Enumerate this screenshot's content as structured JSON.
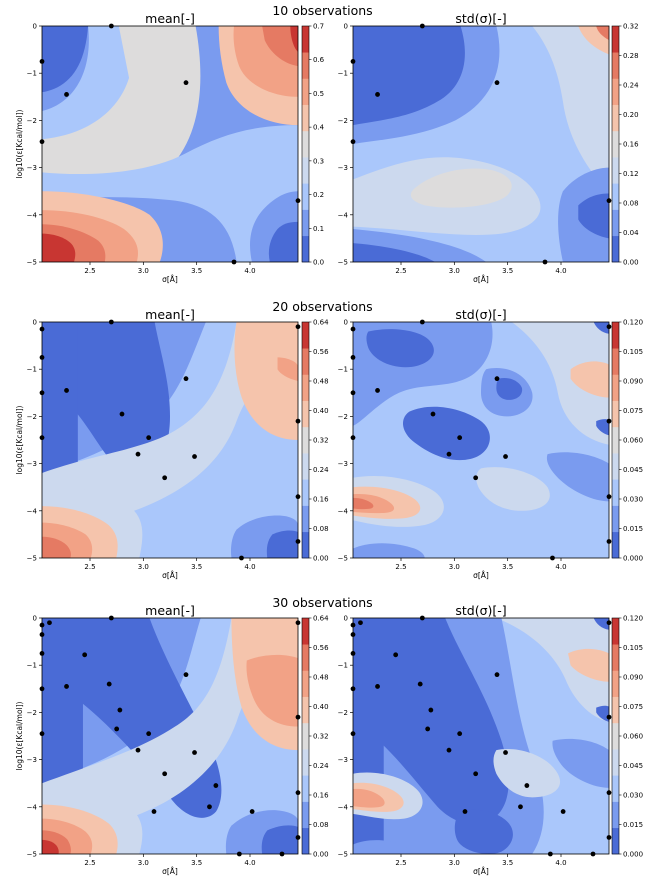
{
  "colors": {
    "blue_dark": "#4a6bd6",
    "blue_mid": "#7a9bef",
    "blue_light": "#aac7fb",
    "pale": "#ccd9ee",
    "grey": "#dddcdc",
    "peach": "#f5c4ac",
    "salmon": "#f2a286",
    "red_mid": "#e57a63",
    "red_dark": "#c83632",
    "point": "#000000"
  },
  "chart_data": [
    {
      "type": "contour",
      "suptitle": "10 observations",
      "title": "mean[-]",
      "xlabel": "σ[Å]",
      "ylabel": "log10(ε[Kcal/mol])",
      "xlim": [
        2.05,
        4.45
      ],
      "ylim": [
        -5,
        0
      ],
      "x_ticks": [
        "2.5",
        "3.0",
        "3.5",
        "4.0"
      ],
      "y_ticks": [
        "0",
        "−1",
        "−2",
        "−3",
        "−4",
        "−5"
      ],
      "colorbar_ticks": [
        "0.0",
        "0.1",
        "0.2",
        "0.3",
        "0.4",
        "0.5",
        "0.6",
        "0.7"
      ],
      "points": [
        [
          2.05,
          -0.75
        ],
        [
          2.28,
          -1.45
        ],
        [
          2.7,
          0
        ],
        [
          3.4,
          -1.2
        ],
        [
          2.05,
          -2.45
        ],
        [
          3.85,
          -5
        ],
        [
          4.45,
          -3.7
        ]
      ]
    },
    {
      "type": "contour",
      "title": "std(σ)[-]",
      "xlabel": "σ[Å]",
      "ylabel": "",
      "xlim": [
        2.05,
        4.45
      ],
      "ylim": [
        -5,
        0
      ],
      "x_ticks": [
        "2.5",
        "3.0",
        "3.5",
        "4.0"
      ],
      "y_ticks": [
        "0",
        "−1",
        "−2",
        "−3",
        "−4",
        "−5"
      ],
      "colorbar_ticks": [
        "0.00",
        "0.04",
        "0.08",
        "0.12",
        "0.16",
        "0.20",
        "0.24",
        "0.28",
        "0.32"
      ],
      "points": [
        [
          2.05,
          -0.75
        ],
        [
          2.28,
          -1.45
        ],
        [
          2.7,
          0
        ],
        [
          3.4,
          -1.2
        ],
        [
          2.05,
          -2.45
        ],
        [
          3.85,
          -5
        ],
        [
          4.45,
          -3.7
        ]
      ]
    },
    {
      "type": "contour",
      "suptitle": "20 observations",
      "title": "mean[-]",
      "xlabel": "σ[Å]",
      "ylabel": "log10(ε[Kcal/mol])",
      "xlim": [
        2.05,
        4.45
      ],
      "ylim": [
        -5,
        0
      ],
      "x_ticks": [
        "2.5",
        "3.0",
        "3.5",
        "4.0"
      ],
      "y_ticks": [
        "0",
        "−1",
        "−2",
        "−3",
        "−4",
        "−5"
      ],
      "colorbar_ticks": [
        "0.00",
        "0.08",
        "0.16",
        "0.24",
        "0.32",
        "0.40",
        "0.48",
        "0.56",
        "0.64"
      ],
      "points": [
        [
          2.05,
          -0.15
        ],
        [
          2.05,
          -0.75
        ],
        [
          2.05,
          -1.5
        ],
        [
          2.28,
          -1.45
        ],
        [
          2.7,
          0
        ],
        [
          2.8,
          -1.95
        ],
        [
          3.05,
          -2.45
        ],
        [
          2.95,
          -2.8
        ],
        [
          3.2,
          -3.3
        ],
        [
          3.4,
          -1.2
        ],
        [
          3.48,
          -2.85
        ],
        [
          2.05,
          -2.45
        ],
        [
          3.92,
          -5
        ],
        [
          4.45,
          -0.1
        ],
        [
          4.45,
          -2.1
        ],
        [
          4.45,
          -3.7
        ],
        [
          4.45,
          -4.65
        ]
      ]
    },
    {
      "type": "contour",
      "title": "std(σ)[-]",
      "xlabel": "σ[Å]",
      "ylabel": "",
      "xlim": [
        2.05,
        4.45
      ],
      "ylim": [
        -5,
        0
      ],
      "x_ticks": [
        "2.5",
        "3.0",
        "3.5",
        "4.0"
      ],
      "y_ticks": [
        "0",
        "−1",
        "−2",
        "−3",
        "−4",
        "−5"
      ],
      "colorbar_ticks": [
        "0.000",
        "0.015",
        "0.030",
        "0.045",
        "0.060",
        "0.075",
        "0.090",
        "0.105",
        "0.120"
      ],
      "points": [
        [
          2.05,
          -0.15
        ],
        [
          2.05,
          -0.75
        ],
        [
          2.05,
          -1.5
        ],
        [
          2.28,
          -1.45
        ],
        [
          2.7,
          0
        ],
        [
          2.8,
          -1.95
        ],
        [
          3.05,
          -2.45
        ],
        [
          2.95,
          -2.8
        ],
        [
          3.2,
          -3.3
        ],
        [
          3.4,
          -1.2
        ],
        [
          3.48,
          -2.85
        ],
        [
          2.05,
          -2.45
        ],
        [
          3.92,
          -5
        ],
        [
          4.45,
          -0.1
        ],
        [
          4.45,
          -2.1
        ],
        [
          4.45,
          -3.7
        ],
        [
          4.45,
          -4.65
        ]
      ]
    },
    {
      "type": "contour",
      "suptitle": "30 observations",
      "title": "mean[-]",
      "xlabel": "σ[Å]",
      "ylabel": "log10(ε[Kcal/mol])",
      "xlim": [
        2.05,
        4.45
      ],
      "ylim": [
        -5,
        0
      ],
      "x_ticks": [
        "2.5",
        "3.0",
        "3.5",
        "4.0"
      ],
      "y_ticks": [
        "0",
        "−1",
        "−2",
        "−3",
        "−4",
        "−5"
      ],
      "colorbar_ticks": [
        "0.00",
        "0.08",
        "0.16",
        "0.24",
        "0.32",
        "0.40",
        "0.48",
        "0.56",
        "0.64"
      ],
      "points": [
        [
          2.05,
          -0.15
        ],
        [
          2.05,
          -0.35
        ],
        [
          2.05,
          -0.75
        ],
        [
          2.12,
          -0.1
        ],
        [
          2.05,
          -1.5
        ],
        [
          2.28,
          -1.45
        ],
        [
          2.45,
          -0.78
        ],
        [
          2.7,
          0
        ],
        [
          2.68,
          -1.4
        ],
        [
          2.78,
          -1.95
        ],
        [
          2.75,
          -2.35
        ],
        [
          2.95,
          -2.8
        ],
        [
          3.05,
          -2.45
        ],
        [
          3.1,
          -4.1
        ],
        [
          3.2,
          -3.3
        ],
        [
          3.4,
          -1.2
        ],
        [
          3.48,
          -2.85
        ],
        [
          3.62,
          -4
        ],
        [
          3.68,
          -3.55
        ],
        [
          4.02,
          -4.1
        ],
        [
          2.05,
          -2.45
        ],
        [
          3.9,
          -5
        ],
        [
          4.3,
          -5
        ],
        [
          4.45,
          -0.1
        ],
        [
          4.45,
          -2.1
        ],
        [
          4.45,
          -3.7
        ],
        [
          4.45,
          -4.65
        ]
      ]
    },
    {
      "type": "contour",
      "title": "std(σ)[-]",
      "xlabel": "σ[Å]",
      "ylabel": "",
      "xlim": [
        2.05,
        4.45
      ],
      "ylim": [
        -5,
        0
      ],
      "x_ticks": [
        "2.5",
        "3.0",
        "3.5",
        "4.0"
      ],
      "y_ticks": [
        "0",
        "−1",
        "−2",
        "−3",
        "−4",
        "−5"
      ],
      "colorbar_ticks": [
        "0.000",
        "0.015",
        "0.030",
        "0.045",
        "0.060",
        "0.075",
        "0.090",
        "0.105",
        "0.120"
      ],
      "points": [
        [
          2.05,
          -0.15
        ],
        [
          2.05,
          -0.35
        ],
        [
          2.05,
          -0.75
        ],
        [
          2.12,
          -0.1
        ],
        [
          2.05,
          -1.5
        ],
        [
          2.28,
          -1.45
        ],
        [
          2.45,
          -0.78
        ],
        [
          2.7,
          0
        ],
        [
          2.68,
          -1.4
        ],
        [
          2.78,
          -1.95
        ],
        [
          2.75,
          -2.35
        ],
        [
          2.95,
          -2.8
        ],
        [
          3.05,
          -2.45
        ],
        [
          3.1,
          -4.1
        ],
        [
          3.2,
          -3.3
        ],
        [
          3.4,
          -1.2
        ],
        [
          3.48,
          -2.85
        ],
        [
          3.62,
          -4
        ],
        [
          3.68,
          -3.55
        ],
        [
          4.02,
          -4.1
        ],
        [
          2.05,
          -2.45
        ],
        [
          3.9,
          -5
        ],
        [
          4.3,
          -5
        ],
        [
          4.45,
          -0.1
        ],
        [
          4.45,
          -2.1
        ],
        [
          4.45,
          -3.7
        ],
        [
          4.45,
          -4.65
        ]
      ]
    }
  ]
}
